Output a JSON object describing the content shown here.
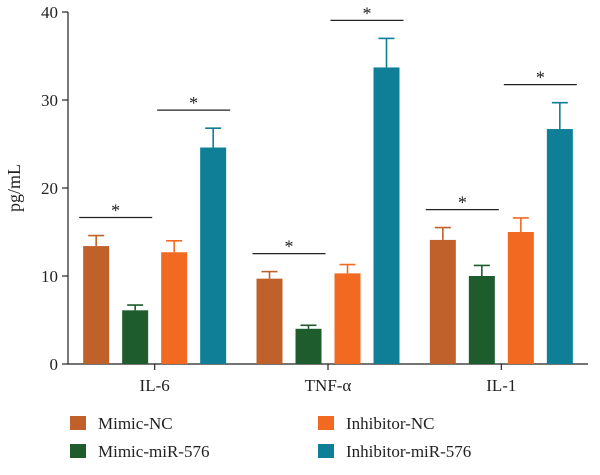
{
  "chart_data": {
    "type": "bar",
    "ylabel": "pg/mL",
    "xlabel": "",
    "ylim": [
      0,
      40
    ],
    "yticks": [
      0,
      10,
      20,
      30,
      40
    ],
    "categories": [
      "IL-6",
      "TNF-α",
      "IL-1"
    ],
    "series": [
      {
        "name": "Mimic-NC",
        "color": "#c0602a",
        "values": [
          13.4,
          9.7,
          14.1
        ],
        "errors": [
          1.2,
          0.8,
          1.4
        ]
      },
      {
        "name": "Mimic-miR-576",
        "color": "#1e5c2e",
        "values": [
          6.1,
          4.0,
          10.0
        ],
        "errors": [
          0.6,
          0.4,
          1.2
        ]
      },
      {
        "name": "Inhibitor-NC",
        "color": "#f26a22",
        "values": [
          12.7,
          10.3,
          15.0
        ],
        "errors": [
          1.3,
          1.0,
          1.6
        ]
      },
      {
        "name": "Inhibitor-miR-576",
        "color": "#0f7f98",
        "values": [
          24.6,
          33.7,
          26.7
        ],
        "errors": [
          2.2,
          3.3,
          3.0
        ]
      }
    ],
    "significance": [
      {
        "category": 0,
        "from_series": 0,
        "to_series": 1,
        "label": "*"
      },
      {
        "category": 0,
        "from_series": 2,
        "to_series": 3,
        "label": "*"
      },
      {
        "category": 1,
        "from_series": 0,
        "to_series": 1,
        "label": "*"
      },
      {
        "category": 1,
        "from_series": 2,
        "to_series": 3,
        "label": "*"
      },
      {
        "category": 2,
        "from_series": 0,
        "to_series": 1,
        "label": "*"
      },
      {
        "category": 2,
        "from_series": 2,
        "to_series": 3,
        "label": "*"
      }
    ],
    "legend": {
      "placement": "bottom",
      "columns": 2
    },
    "grid": false
  }
}
